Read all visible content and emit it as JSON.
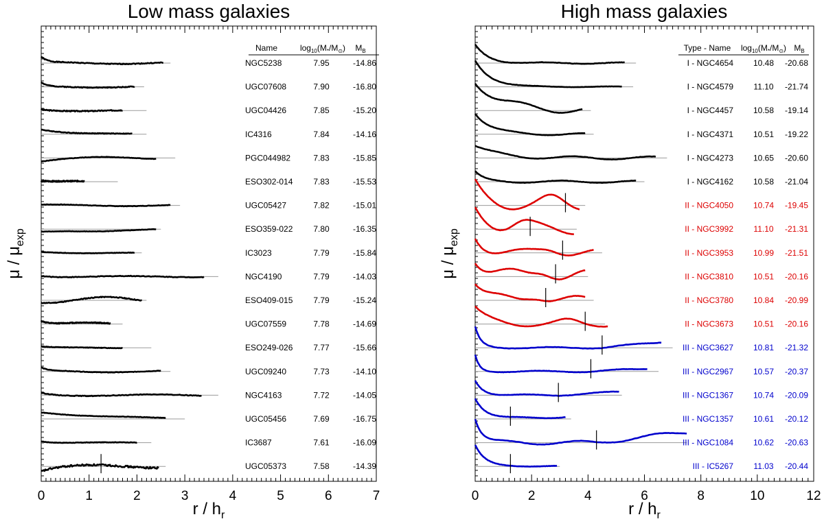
{
  "chart_data": [
    {
      "type": "line",
      "title": "Low mass galaxies",
      "xlabel": "r / h",
      "xlabel_sub": "r",
      "ylabel": "μ / μ",
      "ylabel_sub": "exp",
      "xlim": [
        0,
        7
      ],
      "xticks": [
        "0",
        "1",
        "2",
        "3",
        "4",
        "5",
        "6",
        "7"
      ],
      "columns": [
        "Name",
        "log",
        "10",
        "(M",
        "*",
        "/M",
        "⊙",
        ")",
        "M",
        "B"
      ],
      "rows": [
        {
          "name": "NGC5238",
          "logm": "7.95",
          "mb": "-14.86",
          "color": "#000000",
          "ref_end": 2.7,
          "prof_end": 2.55,
          "amp": 0.7,
          "decay": 0.12,
          "wave": 0.12,
          "noise": 0.1,
          "seed": 1
        },
        {
          "name": "UGC07608",
          "logm": "7.90",
          "mb": "-16.80",
          "color": "#000000",
          "ref_end": 2.15,
          "prof_end": 1.95,
          "amp": 0.5,
          "decay": 0.1,
          "wave": 0.1,
          "noise": 0.1,
          "seed": 2
        },
        {
          "name": "UGC04426",
          "logm": "7.85",
          "mb": "-15.20",
          "color": "#000000",
          "ref_end": 2.2,
          "prof_end": 1.7,
          "amp": 0.1,
          "decay": 0.2,
          "wave": 0.08,
          "noise": 0.12,
          "seed": 3
        },
        {
          "name": "IC4316",
          "logm": "7.84",
          "mb": "-14.16",
          "color": "#000000",
          "ref_end": 2.2,
          "prof_end": 1.9,
          "amp": 0.6,
          "decay": 0.6,
          "wave": 0.05,
          "noise": 0.08,
          "seed": 4
        },
        {
          "name": "PGC044982",
          "logm": "7.83",
          "mb": "-15.85",
          "color": "#000000",
          "ref_end": 2.8,
          "prof_end": 2.4,
          "amp": -0.3,
          "decay": 0.4,
          "wave": 0.15,
          "noise": 0.06,
          "seed": 5
        },
        {
          "name": "ESO302-014",
          "logm": "7.83",
          "mb": "-15.53",
          "color": "#000000",
          "ref_end": 1.6,
          "prof_end": 0.9,
          "amp": 0.1,
          "decay": 0.2,
          "wave": 0.08,
          "noise": 0.15,
          "seed": 6
        },
        {
          "name": "UGC05427",
          "logm": "7.82",
          "mb": "-15.01",
          "color": "#000000",
          "ref_end": 2.9,
          "prof_end": 2.7,
          "amp": 0.05,
          "decay": 0.3,
          "wave": 0.1,
          "noise": 0.06,
          "seed": 7
        },
        {
          "name": "ESO359-022",
          "logm": "7.80",
          "mb": "-16.35",
          "color": "#000000",
          "ref_end": 2.5,
          "prof_end": 2.4,
          "amp": -0.4,
          "decay": 1.5,
          "wave": 0.1,
          "noise": 0.05,
          "seed": 8
        },
        {
          "name": "IC3023",
          "logm": "7.79",
          "mb": "-15.84",
          "color": "#000000",
          "ref_end": 2.1,
          "prof_end": 1.95,
          "amp": 0.1,
          "decay": 0.3,
          "wave": 0.05,
          "noise": 0.05,
          "seed": 9
        },
        {
          "name": "NGC4190",
          "logm": "7.79",
          "mb": "-14.03",
          "color": "#000000",
          "ref_end": 3.7,
          "prof_end": 3.4,
          "amp": 0.1,
          "decay": 0.2,
          "wave": 0.08,
          "noise": 0.08,
          "seed": 10
        },
        {
          "name": "ESO409-015",
          "logm": "7.79",
          "mb": "-15.24",
          "color": "#000000",
          "ref_end": 2.2,
          "prof_end": 2.1,
          "amp": 0.1,
          "decay": 0.3,
          "wave": 0.45,
          "noise": 0.1,
          "seed": 11
        },
        {
          "name": "UGC07559",
          "logm": "7.78",
          "mb": "-14.69",
          "color": "#000000",
          "ref_end": 1.7,
          "prof_end": 1.45,
          "amp": 0.5,
          "decay": 0.15,
          "wave": 0.2,
          "noise": 0.12,
          "seed": 12
        },
        {
          "name": "ESO249-026",
          "logm": "7.77",
          "mb": "-15.66",
          "color": "#000000",
          "ref_end": 2.3,
          "prof_end": 1.7,
          "amp": 0.15,
          "decay": 0.2,
          "wave": 0.05,
          "noise": 0.06,
          "seed": 13
        },
        {
          "name": "UGC09240",
          "logm": "7.73",
          "mb": "-14.10",
          "color": "#000000",
          "ref_end": 2.7,
          "prof_end": 2.5,
          "amp": 0.4,
          "decay": 0.12,
          "wave": 0.12,
          "noise": 0.06,
          "seed": 14
        },
        {
          "name": "NGC4163",
          "logm": "7.72",
          "mb": "-14.05",
          "color": "#000000",
          "ref_end": 3.7,
          "prof_end": 3.35,
          "amp": 0.3,
          "decay": 0.15,
          "wave": 0.1,
          "noise": 0.08,
          "seed": 15
        },
        {
          "name": "UGC05456",
          "logm": "7.69",
          "mb": "-16.75",
          "color": "#000000",
          "ref_end": 3.0,
          "prof_end": 2.6,
          "amp": 0.8,
          "decay": 1.4,
          "wave": 0.05,
          "noise": 0.05,
          "seed": 16
        },
        {
          "name": "IC3687",
          "logm": "7.61",
          "mb": "-16.09",
          "color": "#000000",
          "ref_end": 2.3,
          "prof_end": 2.0,
          "amp": 0.2,
          "decay": 0.2,
          "wave": 0.05,
          "noise": 0.06,
          "seed": 17
        },
        {
          "name": "UGC05373",
          "logm": "7.58",
          "mb": "-14.39",
          "color": "#000000",
          "ref_end": 2.6,
          "prof_end": 2.45,
          "amp": -0.5,
          "decay": 0.25,
          "wave": 0.2,
          "noise": 0.22,
          "seed": 18,
          "break_r": 1.25
        }
      ]
    },
    {
      "type": "line",
      "title": "High mass galaxies",
      "xlabel": "r / h",
      "xlabel_sub": "r",
      "ylabel": "μ / μ",
      "ylabel_sub": "exp",
      "xlim": [
        0,
        12
      ],
      "xticks": [
        "0",
        "2",
        "4",
        "6",
        "8",
        "10",
        "12"
      ],
      "columns": [
        "Type - Name",
        "log",
        "10",
        "(M",
        "*",
        "/M",
        "⊙",
        ")",
        "M",
        "B"
      ],
      "rows": [
        {
          "name": "I - NGC4654",
          "logm": "10.48",
          "mb": "-20.68",
          "color": "#000000",
          "ref_end": 5.7,
          "prof_end": 5.3,
          "amp": 2.2,
          "decay": 0.45,
          "wave": 0.1,
          "noise": 0.05,
          "seed": 21
        },
        {
          "name": "I - NGC4579",
          "logm": "11.10",
          "mb": "-21.74",
          "color": "#000000",
          "ref_end": 5.6,
          "prof_end": 5.2,
          "amp": 3.2,
          "decay": 0.55,
          "wave": 0.05,
          "noise": 0.03,
          "seed": 22
        },
        {
          "name": "I - NGC4457",
          "logm": "10.58",
          "mb": "-19.14",
          "color": "#000000",
          "ref_end": 4.1,
          "prof_end": 3.8,
          "amp": 3.6,
          "decay": 0.9,
          "wave": 0.45,
          "noise": 0.04,
          "seed": 23
        },
        {
          "name": "I - NGC4371",
          "logm": "10.51",
          "mb": "-19.22",
          "color": "#000000",
          "ref_end": 4.2,
          "prof_end": 3.9,
          "amp": 2.6,
          "decay": 0.55,
          "wave": 0.15,
          "noise": 0.03,
          "seed": 24
        },
        {
          "name": "I - NGC4273",
          "logm": "10.65",
          "mb": "-20.60",
          "color": "#000000",
          "ref_end": 6.8,
          "prof_end": 6.4,
          "amp": 1.5,
          "decay": 0.8,
          "wave": 0.2,
          "noise": 0.04,
          "seed": 25
        },
        {
          "name": "I - NGC4162",
          "logm": "10.58",
          "mb": "-21.04",
          "color": "#000000",
          "ref_end": 6.0,
          "prof_end": 5.7,
          "amp": 1.2,
          "decay": 0.3,
          "wave": 0.15,
          "noise": 0.04,
          "seed": 26
        },
        {
          "name": "II - NGC4050",
          "logm": "10.74",
          "mb": "-19.45",
          "color": "#dd0000",
          "ref_end": 3.9,
          "prof_end": 3.7,
          "amp": 2.6,
          "decay": 0.45,
          "wave": 0.7,
          "noise": 0.03,
          "seed": 27,
          "break_r": 3.2
        },
        {
          "name": "II - NGC3992",
          "logm": "11.10",
          "mb": "-21.31",
          "color": "#dd0000",
          "ref_end": 3.6,
          "prof_end": 3.5,
          "amp": 2.5,
          "decay": 0.5,
          "wave": 0.7,
          "noise": 0.03,
          "seed": 28,
          "break_r": 1.95
        },
        {
          "name": "II - NGC3953",
          "logm": "10.99",
          "mb": "-21.51",
          "color": "#dd0000",
          "ref_end": 4.5,
          "prof_end": 4.2,
          "amp": 2.0,
          "decay": 0.35,
          "wave": 0.5,
          "noise": 0.03,
          "seed": 29,
          "break_r": 3.1
        },
        {
          "name": "II - NGC3810",
          "logm": "10.51",
          "mb": "-20.16",
          "color": "#dd0000",
          "ref_end": 4.0,
          "prof_end": 3.9,
          "amp": 2.4,
          "decay": 0.45,
          "wave": 0.9,
          "noise": 0.03,
          "seed": 30,
          "break_r": 2.85
        },
        {
          "name": "II - NGC3780",
          "logm": "10.84",
          "mb": "-20.99",
          "color": "#dd0000",
          "ref_end": 4.2,
          "prof_end": 3.9,
          "amp": 2.2,
          "decay": 0.4,
          "wave": 0.6,
          "noise": 0.03,
          "seed": 31,
          "break_r": 2.5
        },
        {
          "name": "II - NGC3673",
          "logm": "10.51",
          "mb": "-20.16",
          "color": "#dd0000",
          "ref_end": 4.6,
          "prof_end": 4.7,
          "amp": 2.0,
          "decay": 0.45,
          "wave": 0.35,
          "noise": 0.03,
          "seed": 32,
          "break_r": 3.9
        },
        {
          "name": "III - NGC3627",
          "logm": "10.81",
          "mb": "-21.32",
          "color": "#0000cc",
          "ref_end": 7.0,
          "prof_end": 6.6,
          "amp": 2.5,
          "decay": 0.2,
          "wave": 0.1,
          "noise": 0.04,
          "seed": 33,
          "break_r": 4.5,
          "rise": 0.7
        },
        {
          "name": "III - NGC2967",
          "logm": "10.57",
          "mb": "-20.37",
          "color": "#0000cc",
          "ref_end": 6.5,
          "prof_end": 6.1,
          "amp": 2.0,
          "decay": 0.15,
          "wave": 0.1,
          "noise": 0.04,
          "seed": 34,
          "break_r": 4.1,
          "rise": 0.35
        },
        {
          "name": "III - NGC1367",
          "logm": "10.74",
          "mb": "-20.09",
          "color": "#0000cc",
          "ref_end": 5.2,
          "prof_end": 5.1,
          "amp": 1.8,
          "decay": 0.3,
          "wave": 0.1,
          "noise": 0.04,
          "seed": 35,
          "break_r": 2.95,
          "rise": 0.4
        },
        {
          "name": "III - NGC1357",
          "logm": "10.61",
          "mb": "-20.12",
          "color": "#0000cc",
          "ref_end": 3.4,
          "prof_end": 3.2,
          "amp": 2.6,
          "decay": 0.4,
          "wave": 0.15,
          "noise": 0.04,
          "seed": 36,
          "break_r": 1.25,
          "rise": 0.3
        },
        {
          "name": "III - NGC1084",
          "logm": "10.62",
          "mb": "-20.63",
          "color": "#0000cc",
          "ref_end": 7.5,
          "prof_end": 7.5,
          "amp": 3.0,
          "decay": 0.25,
          "wave": 0.25,
          "noise": 0.04,
          "seed": 37,
          "break_r": 4.3,
          "rise": 1.3
        },
        {
          "name": "III - IC5267",
          "logm": "11.03",
          "mb": "-20.44",
          "color": "#0000cc",
          "ref_end": 3.0,
          "prof_end": 2.9,
          "amp": 2.6,
          "decay": 0.35,
          "wave": 0.05,
          "noise": 0.04,
          "seed": 38,
          "break_r": 1.25,
          "rise": 0.05
        }
      ]
    }
  ]
}
